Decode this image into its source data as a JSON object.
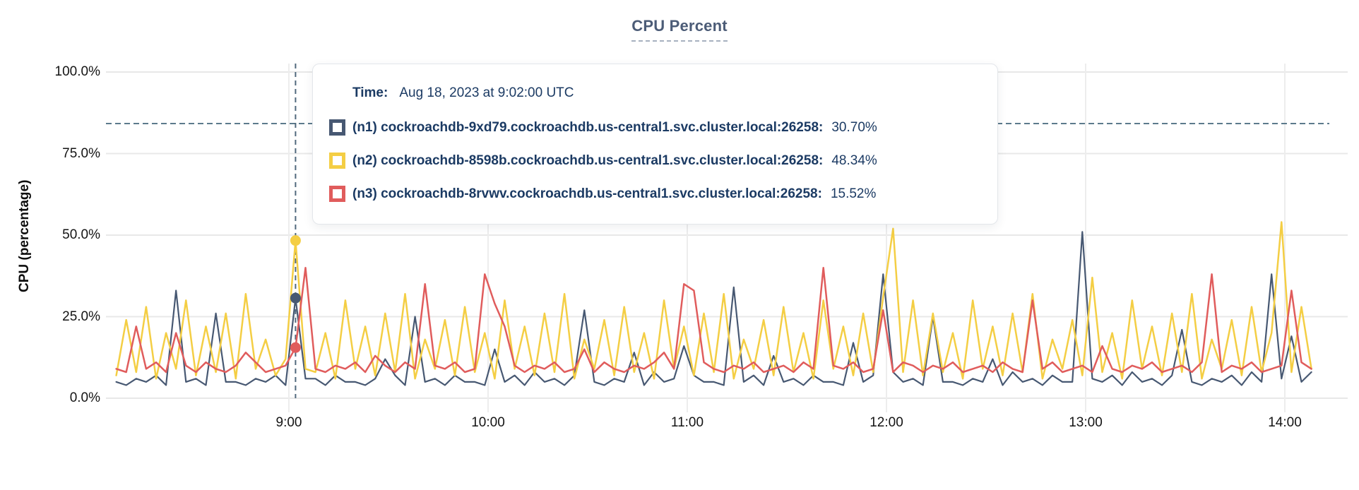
{
  "header": {
    "title": "CPU Percent"
  },
  "axes": {
    "ylabel": "CPU (percentage)",
    "y_ticks": [
      {
        "value": 0,
        "label": "0.0%"
      },
      {
        "value": 25,
        "label": "25.0%"
      },
      {
        "value": 50,
        "label": "50.0%"
      },
      {
        "value": 75,
        "label": "75.0%"
      },
      {
        "value": 100,
        "label": "100.0%"
      }
    ],
    "x_ticks": [
      {
        "minute": 540,
        "label": "9:00"
      },
      {
        "minute": 600,
        "label": "10:00"
      },
      {
        "minute": 660,
        "label": "11:00"
      },
      {
        "minute": 720,
        "label": "12:00"
      },
      {
        "minute": 780,
        "label": "13:00"
      },
      {
        "minute": 840,
        "label": "14:00"
      }
    ]
  },
  "tooltip": {
    "time_label": "Time:",
    "time_value": "Aug 18, 2023 at 9:02:00 UTC",
    "rows": [
      {
        "label": "(n1) cockroachdb-9xd79.cockroachdb.us-central1.svc.cluster.local:26258:",
        "value": "30.70%",
        "color": "#475872"
      },
      {
        "label": "(n2) cockroachdb-8598b.cockroachdb.us-central1.svc.cluster.local:26258:",
        "value": "48.34%",
        "color": "#F4CE44"
      },
      {
        "label": "(n3) cockroachdb-8rvwv.cockroachdb.us-central1.svc.cluster.local:26258:",
        "value": "15.52%",
        "color": "#E05C5C"
      }
    ]
  },
  "chart_data": {
    "type": "line",
    "title": "CPU Percent",
    "ylabel": "CPU (percentage)",
    "ylim": [
      0,
      100
    ],
    "grid": true,
    "legend_position": "tooltip",
    "x_range_minutes": [
      488,
      848
    ],
    "start_minute": 488,
    "step_minutes": 3,
    "threshold_line": {
      "value": 84.2,
      "style": "dashed",
      "color": "#5C7A8C"
    },
    "hover": {
      "minute": 542,
      "time": "9:02:00 UTC",
      "points": [
        {
          "series": "n1",
          "value": 30.7
        },
        {
          "series": "n2",
          "value": 48.34
        },
        {
          "series": "n3",
          "value": 15.52
        }
      ]
    },
    "series": [
      {
        "name": "n1",
        "host": "cockroachdb-9xd79.cockroachdb.us-central1.svc.cluster.local:26258",
        "color": "#475872",
        "stroke_width": 2.2,
        "values": [
          5,
          4,
          6,
          5,
          7,
          4,
          33,
          5,
          6,
          4,
          26,
          5,
          5,
          4,
          6,
          5,
          7,
          4,
          30.7,
          6,
          6,
          4,
          7,
          5,
          5,
          4,
          6,
          12,
          7,
          4,
          25,
          5,
          6,
          4,
          7,
          5,
          5,
          4,
          15,
          5,
          7,
          4,
          8,
          5,
          6,
          4,
          7,
          27,
          5,
          4,
          6,
          5,
          14,
          4,
          8,
          5,
          6,
          16,
          7,
          5,
          5,
          4,
          34,
          5,
          7,
          4,
          13,
          5,
          6,
          4,
          7,
          5,
          5,
          4,
          17,
          5,
          7,
          38,
          8,
          5,
          6,
          4,
          25,
          5,
          5,
          4,
          6,
          5,
          12,
          4,
          8,
          5,
          6,
          4,
          7,
          5,
          5,
          51,
          6,
          5,
          7,
          4,
          8,
          5,
          6,
          4,
          7,
          21,
          5,
          4,
          6,
          5,
          7,
          4,
          8,
          5,
          38,
          6,
          19,
          5,
          8
        ]
      },
      {
        "name": "n2",
        "host": "cockroachdb-8598b.cockroachdb.us-central1.svc.cluster.local:26258",
        "color": "#F4CE44",
        "stroke_width": 2.5,
        "values": [
          7,
          24,
          8,
          28,
          6,
          20,
          9,
          30,
          7,
          22,
          8,
          26,
          6,
          32,
          9,
          18,
          7,
          12,
          48.34,
          9,
          8,
          20,
          6,
          30,
          9,
          22,
          7,
          26,
          8,
          32,
          6,
          18,
          9,
          24,
          7,
          28,
          8,
          20,
          6,
          30,
          9,
          22,
          7,
          26,
          8,
          32,
          6,
          18,
          9,
          24,
          7,
          28,
          8,
          20,
          6,
          30,
          9,
          22,
          7,
          26,
          8,
          32,
          6,
          18,
          9,
          24,
          7,
          28,
          8,
          20,
          6,
          30,
          9,
          22,
          7,
          26,
          8,
          31,
          52,
          8,
          30,
          7,
          26,
          8,
          20,
          6,
          30,
          9,
          22,
          7,
          26,
          8,
          32,
          6,
          18,
          9,
          24,
          7,
          37,
          8,
          20,
          6,
          30,
          9,
          22,
          7,
          26,
          8,
          32,
          6,
          18,
          9,
          24,
          7,
          28,
          8,
          20,
          54,
          8,
          28,
          9
        ]
      },
      {
        "name": "n3",
        "host": "cockroachdb-8rvwv.cockroachdb.us-central1.svc.cluster.local:26258",
        "color": "#E05C5C",
        "stroke_width": 2.5,
        "values": [
          9,
          8,
          22,
          9,
          11,
          8,
          20,
          10,
          8,
          11,
          9,
          8,
          10,
          14,
          11,
          8,
          9,
          10,
          15.52,
          40,
          9,
          8,
          10,
          9,
          11,
          8,
          13,
          10,
          8,
          11,
          9,
          35,
          10,
          9,
          11,
          8,
          9,
          38,
          29,
          22,
          10,
          8,
          10,
          9,
          11,
          8,
          9,
          15,
          8,
          11,
          9,
          8,
          10,
          9,
          11,
          14,
          9,
          35,
          33,
          11,
          9,
          8,
          10,
          9,
          11,
          8,
          9,
          10,
          8,
          11,
          9,
          40,
          10,
          9,
          11,
          8,
          9,
          27,
          8,
          11,
          10,
          8,
          10,
          9,
          11,
          8,
          9,
          10,
          8,
          11,
          9,
          8,
          30,
          9,
          11,
          8,
          9,
          10,
          8,
          16,
          9,
          8,
          10,
          9,
          11,
          8,
          9,
          10,
          8,
          11,
          38,
          8,
          10,
          9,
          11,
          8,
          9,
          10,
          33,
          11,
          9
        ]
      }
    ]
  }
}
